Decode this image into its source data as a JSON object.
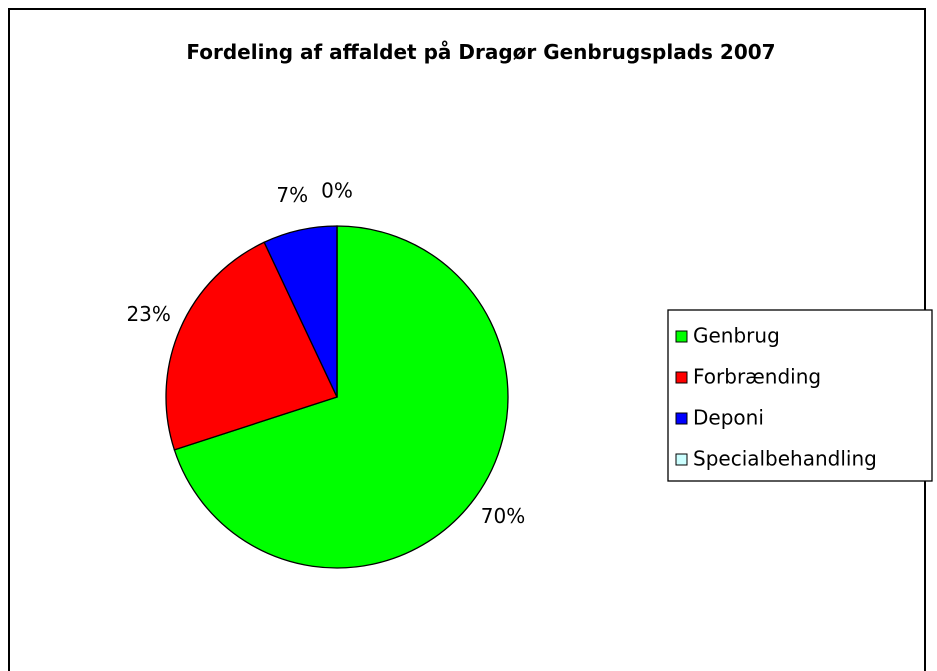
{
  "chart_data": {
    "type": "pie",
    "title": "Fordeling af affaldet på Dragør Genbrugsplads 2007",
    "categories": [
      "Genbrug",
      "Forbrænding",
      "Deponi",
      "Specialbehandling"
    ],
    "values": [
      70,
      23,
      7,
      0
    ],
    "value_labels": [
      "70%",
      "23%",
      "7%",
      "0%"
    ],
    "colors": [
      "#00ff00",
      "#ff0000",
      "#0000ff",
      "#ccffff"
    ],
    "legend": "right"
  }
}
